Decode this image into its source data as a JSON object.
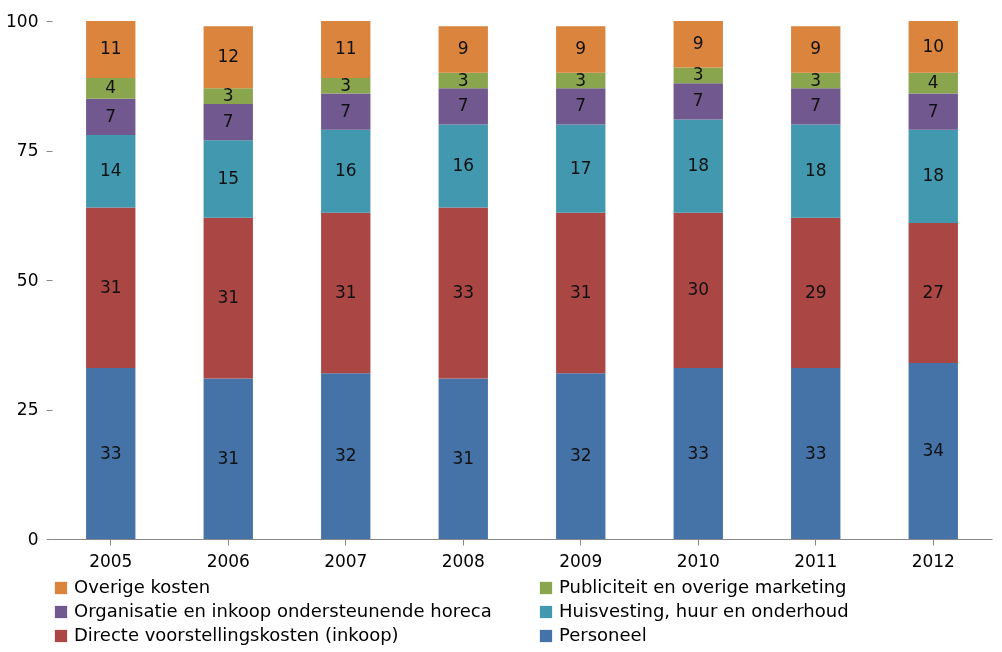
{
  "chart_data": {
    "type": "bar",
    "stacked": true,
    "categories": [
      "2005",
      "2006",
      "2007",
      "2008",
      "2009",
      "2010",
      "2011",
      "2012"
    ],
    "series": [
      {
        "name": "Personeel",
        "color": "#4572a7",
        "values": [
          33,
          31,
          32,
          31,
          32,
          33,
          33,
          34
        ]
      },
      {
        "name": "Directe voorstellingskosten (inkoop)",
        "color": "#aa4643",
        "values": [
          31,
          31,
          31,
          33,
          31,
          30,
          29,
          27
        ]
      },
      {
        "name": "Huisvesting, huur en onderhoud",
        "color": "#4198af",
        "values": [
          14,
          15,
          16,
          16,
          17,
          18,
          18,
          18
        ]
      },
      {
        "name": "Organisatie en inkoop ondersteunende horeca",
        "color": "#71588f",
        "values": [
          7,
          7,
          7,
          7,
          7,
          7,
          7,
          7
        ]
      },
      {
        "name": "Publiciteit en overige marketing",
        "color": "#89a54e",
        "values": [
          4,
          3,
          3,
          3,
          3,
          3,
          3,
          4
        ]
      },
      {
        "name": "Overige kosten",
        "color": "#db843d",
        "values": [
          11,
          12,
          11,
          9,
          9,
          9,
          9,
          10
        ]
      }
    ],
    "ylim": [
      0,
      100
    ],
    "yticks": [
      0,
      25,
      50,
      75,
      100
    ],
    "grid": false,
    "legend": "bottom",
    "data_labels": true
  }
}
